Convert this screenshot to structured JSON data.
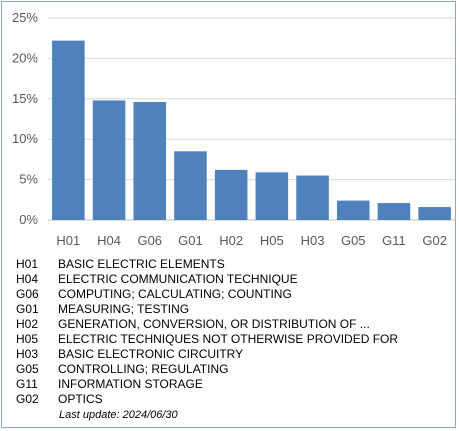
{
  "chart_data": {
    "type": "bar",
    "categories": [
      "H01",
      "H04",
      "G06",
      "G01",
      "H02",
      "H05",
      "H03",
      "G05",
      "G11",
      "G02"
    ],
    "values": [
      22.2,
      14.8,
      14.6,
      8.5,
      6.2,
      5.9,
      5.5,
      2.4,
      2.1,
      1.6
    ],
    "ylim": [
      0,
      25
    ],
    "yticks": [
      "0%",
      "5%",
      "10%",
      "15%",
      "20%",
      "25%"
    ],
    "ytick_values": [
      0,
      5,
      10,
      15,
      20,
      25
    ],
    "grid": true,
    "bar_color": "#4f81bd",
    "grid_color": "#d9d9d9"
  },
  "legend": [
    {
      "code": "H01",
      "desc": "BASIC ELECTRIC ELEMENTS"
    },
    {
      "code": "H04",
      "desc": "ELECTRIC COMMUNICATION TECHNIQUE"
    },
    {
      "code": "G06",
      "desc": "COMPUTING; CALCULATING; COUNTING"
    },
    {
      "code": "G01",
      "desc": "MEASURING; TESTING"
    },
    {
      "code": "H02",
      "desc": "GENERATION, CONVERSION, OR DISTRIBUTION OF ..."
    },
    {
      "code": "H05",
      "desc": "ELECTRIC TECHNIQUES NOT OTHERWISE PROVIDED FOR"
    },
    {
      "code": "H03",
      "desc": "BASIC ELECTRONIC CIRCUITRY"
    },
    {
      "code": "G05",
      "desc": "CONTROLLING; REGULATING"
    },
    {
      "code": "G11",
      "desc": "INFORMATION STORAGE"
    },
    {
      "code": "G02",
      "desc": "OPTICS"
    }
  ],
  "footnote": "Last update:  2024/06/30"
}
